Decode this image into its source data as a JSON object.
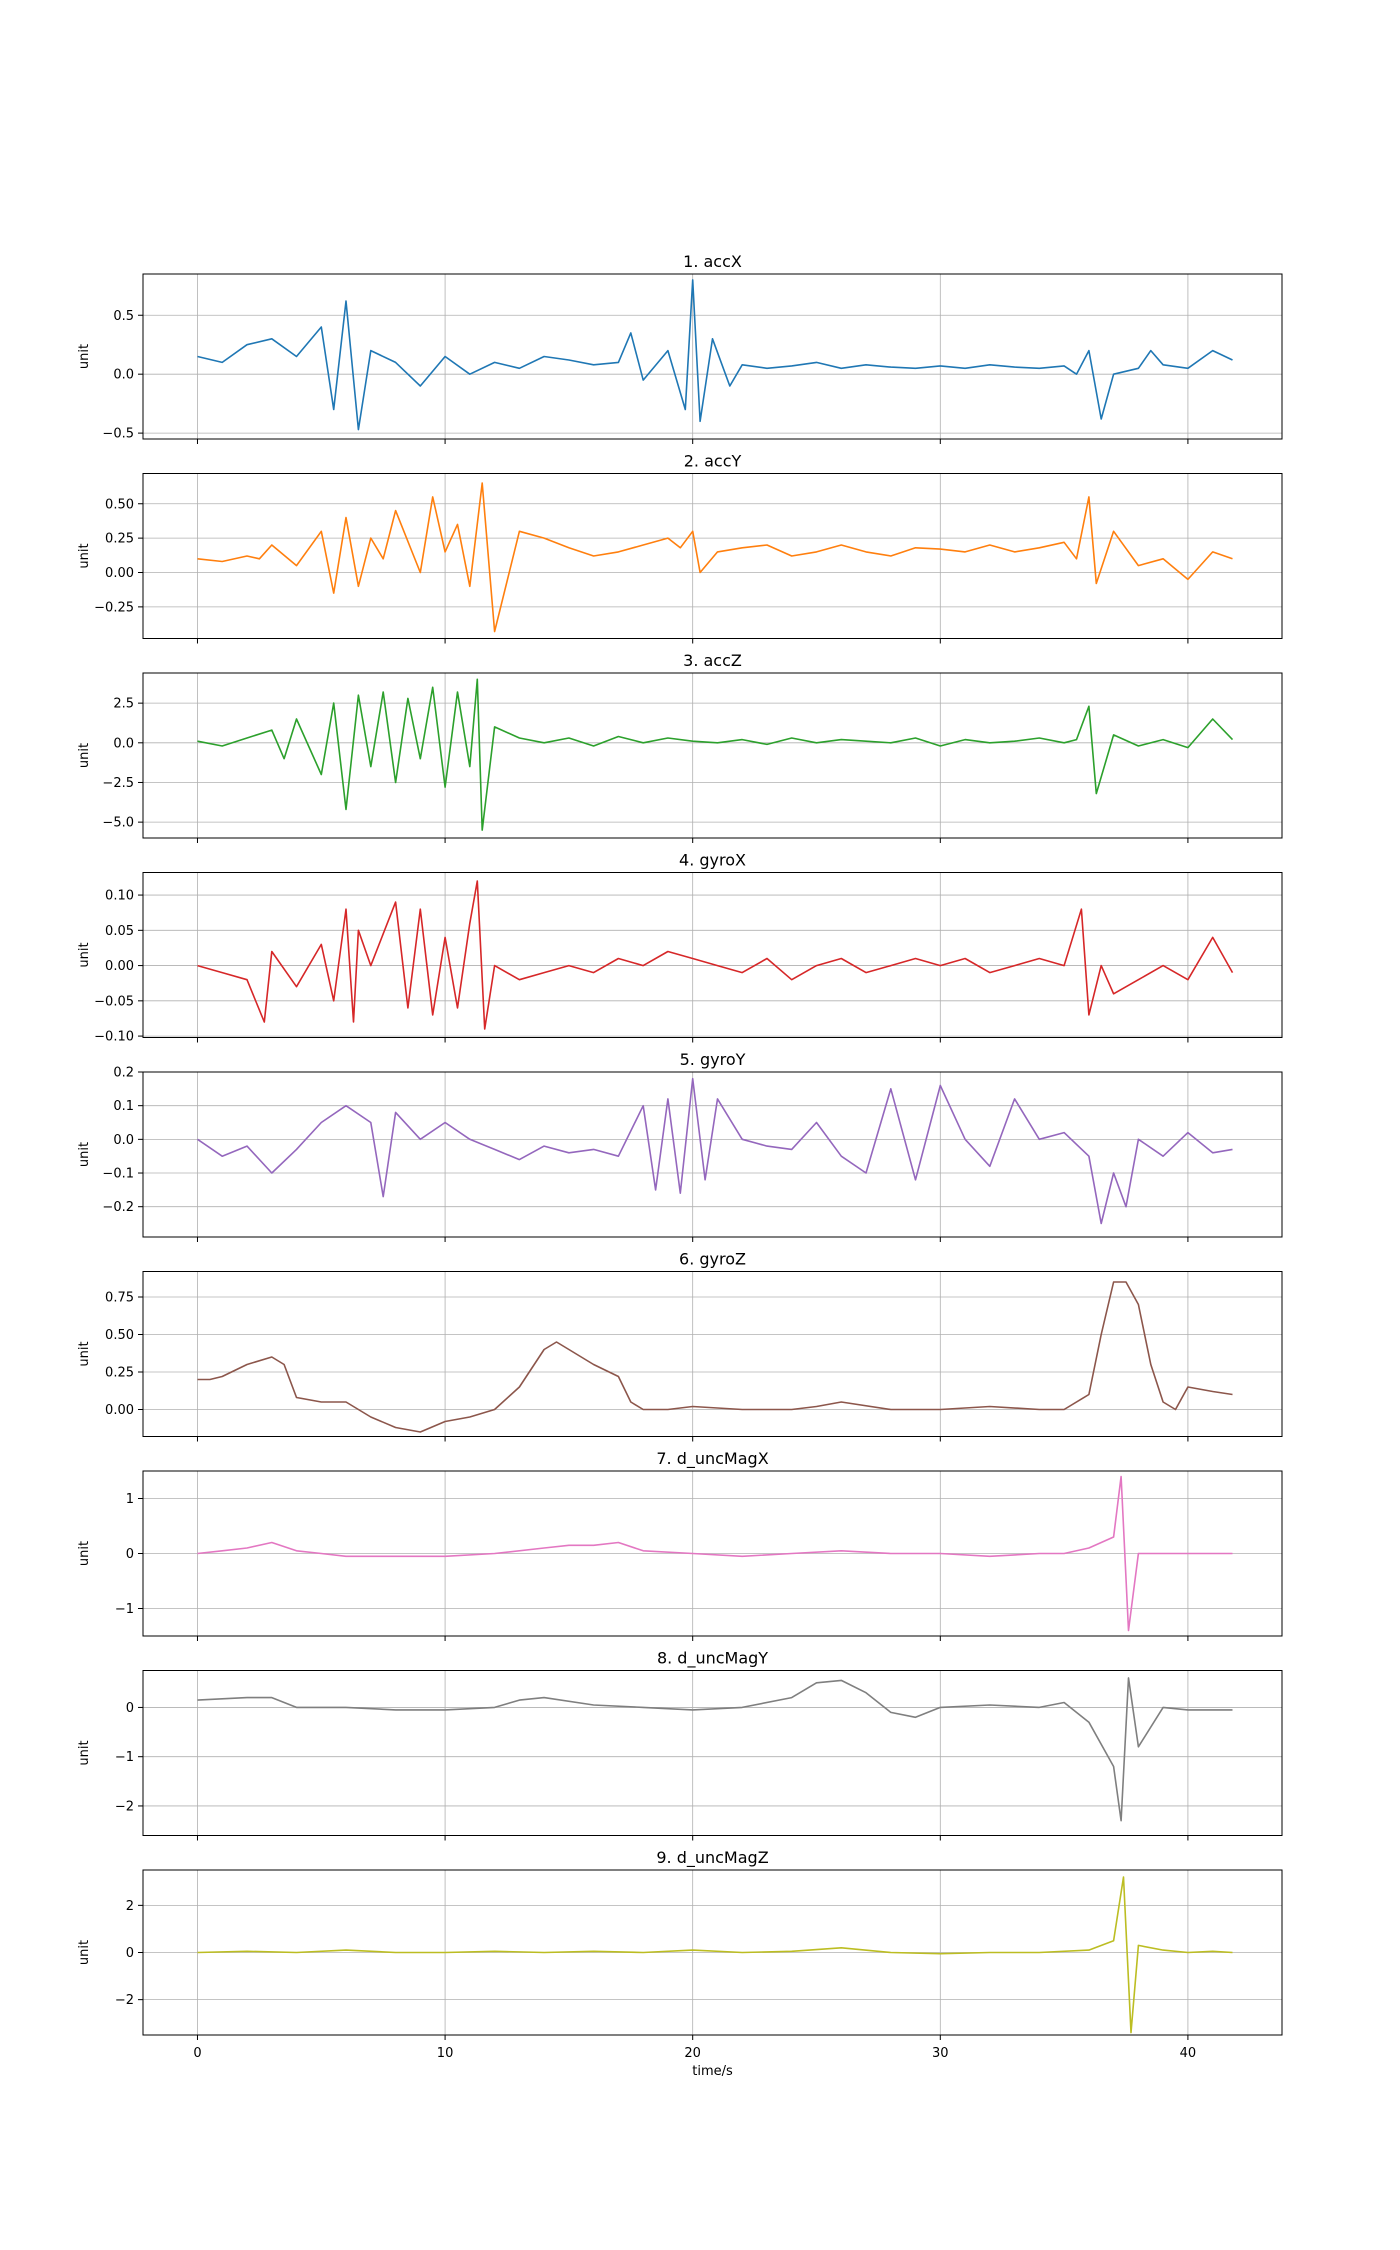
{
  "xlabel": "time/s",
  "x_ticks": [
    0,
    10,
    20,
    30,
    40
  ],
  "xlim": [
    -2.2,
    43.8
  ],
  "grid": true,
  "chart_data": [
    {
      "type": "line",
      "title": "1. accX",
      "ylabel": "unit",
      "color": "#1f77b4",
      "ylim": [
        -0.55,
        0.85
      ],
      "yticks": [
        0.5,
        0.0,
        -0.5
      ],
      "ytick_labels": [
        "0.5",
        "0.0",
        "−0.5"
      ],
      "x": [
        0,
        1,
        2,
        3,
        4,
        5,
        5.5,
        6,
        6.5,
        7,
        8,
        9,
        10,
        11,
        12,
        13,
        14,
        15,
        16,
        17,
        17.5,
        18,
        19,
        19.7,
        20,
        20.3,
        20.8,
        21.5,
        22,
        23,
        24,
        25,
        26,
        27,
        28,
        29,
        30,
        31,
        32,
        33,
        34,
        35,
        35.5,
        36,
        36.5,
        37,
        38,
        38.5,
        39,
        40,
        41,
        41.8
      ],
      "values": [
        0.15,
        0.1,
        0.25,
        0.3,
        0.15,
        0.4,
        -0.3,
        0.62,
        -0.47,
        0.2,
        0.1,
        -0.1,
        0.15,
        0.0,
        0.1,
        0.05,
        0.15,
        0.12,
        0.08,
        0.1,
        0.35,
        -0.05,
        0.2,
        -0.3,
        0.8,
        -0.4,
        0.3,
        -0.1,
        0.08,
        0.05,
        0.07,
        0.1,
        0.05,
        0.08,
        0.06,
        0.05,
        0.07,
        0.05,
        0.08,
        0.06,
        0.05,
        0.07,
        0.0,
        0.2,
        -0.38,
        0.0,
        0.05,
        0.2,
        0.08,
        0.05,
        0.2,
        0.12
      ]
    },
    {
      "type": "line",
      "title": "2. accY",
      "ylabel": "unit",
      "color": "#ff7f0e",
      "ylim": [
        -0.48,
        0.72
      ],
      "yticks": [
        0.5,
        0.25,
        0.0,
        -0.25
      ],
      "ytick_labels": [
        "0.50",
        "0.25",
        "0.00",
        "−0.25"
      ],
      "x": [
        0,
        1,
        2,
        2.5,
        3,
        4,
        5,
        5.5,
        6,
        6.5,
        7,
        7.5,
        8,
        9,
        9.5,
        10,
        10.5,
        11,
        11.5,
        12,
        13,
        14,
        15,
        16,
        17,
        18,
        19,
        19.5,
        20,
        20.3,
        21,
        22,
        23,
        24,
        25,
        26,
        27,
        28,
        29,
        30,
        31,
        32,
        33,
        34,
        35,
        35.5,
        36,
        36.3,
        37,
        38,
        39,
        40,
        41,
        41.8
      ],
      "values": [
        0.1,
        0.08,
        0.12,
        0.1,
        0.2,
        0.05,
        0.3,
        -0.15,
        0.4,
        -0.1,
        0.25,
        0.1,
        0.45,
        0.0,
        0.55,
        0.15,
        0.35,
        -0.1,
        0.65,
        -0.43,
        0.3,
        0.25,
        0.18,
        0.12,
        0.15,
        0.2,
        0.25,
        0.18,
        0.3,
        0.0,
        0.15,
        0.18,
        0.2,
        0.12,
        0.15,
        0.2,
        0.15,
        0.12,
        0.18,
        0.17,
        0.15,
        0.2,
        0.15,
        0.18,
        0.22,
        0.1,
        0.55,
        -0.08,
        0.3,
        0.05,
        0.1,
        -0.05,
        0.15,
        0.1
      ]
    },
    {
      "type": "line",
      "title": "3. accZ",
      "ylabel": "unit",
      "color": "#2ca02c",
      "ylim": [
        -6.0,
        4.4
      ],
      "yticks": [
        2.5,
        0.0,
        -2.5,
        -5.0
      ],
      "ytick_labels": [
        "2.5",
        "0.0",
        "−2.5",
        "−5.0"
      ],
      "x": [
        0,
        1,
        2,
        3,
        3.5,
        4,
        5,
        5.5,
        6,
        6.5,
        7,
        7.5,
        8,
        8.5,
        9,
        9.5,
        10,
        10.5,
        11,
        11.3,
        11.5,
        12,
        13,
        14,
        15,
        16,
        17,
        18,
        19,
        20,
        21,
        22,
        23,
        24,
        25,
        26,
        27,
        28,
        29,
        30,
        31,
        32,
        33,
        34,
        35,
        35.5,
        36,
        36.3,
        37,
        38,
        39,
        40,
        41,
        41.8
      ],
      "values": [
        0.1,
        -0.2,
        0.3,
        0.8,
        -1.0,
        1.5,
        -2.0,
        2.5,
        -4.2,
        3.0,
        -1.5,
        3.2,
        -2.5,
        2.8,
        -1.0,
        3.5,
        -2.8,
        3.2,
        -1.5,
        4.0,
        -5.5,
        1.0,
        0.3,
        0.0,
        0.3,
        -0.2,
        0.4,
        0.0,
        0.3,
        0.1,
        0.0,
        0.2,
        -0.1,
        0.3,
        0.0,
        0.2,
        0.1,
        0.0,
        0.3,
        -0.2,
        0.2,
        0.0,
        0.1,
        0.3,
        0.0,
        0.2,
        2.3,
        -3.2,
        0.5,
        -0.2,
        0.2,
        -0.3,
        1.5,
        0.2
      ]
    },
    {
      "type": "line",
      "title": "4. gyroX",
      "ylabel": "unit",
      "color": "#d62728",
      "ylim": [
        -0.102,
        0.132
      ],
      "yticks": [
        0.1,
        0.05,
        0.0,
        -0.05,
        -0.1
      ],
      "ytick_labels": [
        "0.10",
        "0.05",
        "0.00",
        "−0.05",
        "−0.10"
      ],
      "x": [
        0,
        1,
        2,
        2.7,
        3,
        4,
        5,
        5.5,
        6,
        6.3,
        6.5,
        7,
        8,
        8.5,
        9,
        9.5,
        10,
        10.5,
        11,
        11.3,
        11.6,
        12,
        13,
        14,
        15,
        16,
        17,
        18,
        19,
        20,
        21,
        22,
        23,
        24,
        25,
        26,
        27,
        28,
        29,
        30,
        31,
        32,
        33,
        34,
        35,
        35.7,
        36,
        36.5,
        37,
        38,
        39,
        40,
        41,
        41.8
      ],
      "values": [
        0.0,
        -0.01,
        -0.02,
        -0.08,
        0.02,
        -0.03,
        0.03,
        -0.05,
        0.08,
        -0.08,
        0.05,
        0.0,
        0.09,
        -0.06,
        0.08,
        -0.07,
        0.04,
        -0.06,
        0.06,
        0.12,
        -0.09,
        0.0,
        -0.02,
        -0.01,
        0.0,
        -0.01,
        0.01,
        0.0,
        0.02,
        0.01,
        0.0,
        -0.01,
        0.01,
        -0.02,
        0.0,
        0.01,
        -0.01,
        0.0,
        0.01,
        0.0,
        0.01,
        -0.01,
        0.0,
        0.01,
        0.0,
        0.08,
        -0.07,
        0.0,
        -0.04,
        -0.02,
        0.0,
        -0.02,
        0.04,
        -0.01
      ]
    },
    {
      "type": "line",
      "title": "5. gyroY",
      "ylabel": "unit",
      "color": "#9467bd",
      "ylim": [
        -0.29,
        0.2
      ],
      "yticks": [
        0.2,
        0.1,
        0.0,
        -0.1,
        -0.2
      ],
      "ytick_labels": [
        "0.2",
        "0.1",
        "0.0",
        "−0.1",
        "−0.2"
      ],
      "x": [
        0,
        1,
        2,
        3,
        4,
        5,
        6,
        7,
        7.5,
        8,
        9,
        10,
        11,
        12,
        13,
        14,
        15,
        16,
        17,
        18,
        18.5,
        19,
        19.5,
        20,
        20.5,
        21,
        22,
        23,
        24,
        25,
        26,
        27,
        28,
        29,
        30,
        31,
        32,
        33,
        34,
        35,
        36,
        36.5,
        37,
        37.5,
        38,
        39,
        40,
        41,
        41.8
      ],
      "values": [
        0.0,
        -0.05,
        -0.02,
        -0.1,
        -0.03,
        0.05,
        0.1,
        0.05,
        -0.17,
        0.08,
        0.0,
        0.05,
        0.0,
        -0.03,
        -0.06,
        -0.02,
        -0.04,
        -0.03,
        -0.05,
        0.1,
        -0.15,
        0.12,
        -0.16,
        0.18,
        -0.12,
        0.12,
        0.0,
        -0.02,
        -0.03,
        0.05,
        -0.05,
        -0.1,
        0.15,
        -0.12,
        0.16,
        0.0,
        -0.08,
        0.12,
        0.0,
        0.02,
        -0.05,
        -0.25,
        -0.1,
        -0.2,
        0.0,
        -0.05,
        0.02,
        -0.04,
        -0.03
      ]
    },
    {
      "type": "line",
      "title": "6. gyroZ",
      "ylabel": "unit",
      "color": "#8c564b",
      "ylim": [
        -0.18,
        0.92
      ],
      "yticks": [
        0.75,
        0.5,
        0.25,
        0.0
      ],
      "ytick_labels": [
        "0.75",
        "0.50",
        "0.25",
        "0.00"
      ],
      "x": [
        0,
        0.5,
        1,
        2,
        3,
        3.5,
        4,
        5,
        6,
        7,
        8,
        9,
        10,
        11,
        12,
        13,
        14,
        14.5,
        15,
        16,
        17,
        17.5,
        18,
        19,
        20,
        22,
        24,
        25,
        26,
        28,
        30,
        32,
        34,
        35,
        36,
        36.5,
        37,
        37.5,
        38,
        38.5,
        39,
        39.5,
        40,
        41,
        41.8
      ],
      "values": [
        0.2,
        0.2,
        0.22,
        0.3,
        0.35,
        0.3,
        0.08,
        0.05,
        0.05,
        -0.05,
        -0.12,
        -0.15,
        -0.08,
        -0.05,
        0.0,
        0.15,
        0.4,
        0.45,
        0.4,
        0.3,
        0.22,
        0.05,
        0.0,
        0.0,
        0.02,
        0.0,
        0.0,
        0.02,
        0.05,
        0.0,
        0.0,
        0.02,
        0.0,
        0.0,
        0.1,
        0.5,
        0.85,
        0.85,
        0.7,
        0.3,
        0.05,
        0.0,
        0.15,
        0.12,
        0.1
      ]
    },
    {
      "type": "line",
      "title": "7. d_uncMagX",
      "ylabel": "unit",
      "color": "#e377c2",
      "ylim": [
        -1.5,
        1.5
      ],
      "yticks": [
        1,
        0,
        -1
      ],
      "ytick_labels": [
        "1",
        "0",
        "−1"
      ],
      "x": [
        0,
        1,
        2,
        3,
        4,
        5,
        6,
        8,
        10,
        12,
        14,
        15,
        16,
        17,
        18,
        20,
        22,
        24,
        26,
        28,
        30,
        32,
        34,
        35,
        36,
        37,
        37.3,
        37.6,
        38,
        39,
        40,
        41,
        41.8
      ],
      "values": [
        0.0,
        0.05,
        0.1,
        0.2,
        0.05,
        0.0,
        -0.05,
        -0.05,
        -0.05,
        0.0,
        0.1,
        0.15,
        0.15,
        0.2,
        0.05,
        0.0,
        -0.05,
        0.0,
        0.05,
        0.0,
        0.0,
        -0.05,
        0.0,
        0.0,
        0.1,
        0.3,
        1.4,
        -1.4,
        0.0,
        0.0,
        0.0,
        0.0,
        0.0
      ]
    },
    {
      "type": "line",
      "title": "8. d_uncMagY",
      "ylabel": "unit",
      "color": "#7f7f7f",
      "ylim": [
        -2.6,
        0.75
      ],
      "yticks": [
        0,
        -1,
        -2
      ],
      "ytick_labels": [
        "0",
        "−1",
        "−2"
      ],
      "x": [
        0,
        2,
        3,
        4,
        6,
        8,
        10,
        12,
        13,
        14,
        16,
        18,
        20,
        22,
        24,
        25,
        26,
        27,
        28,
        29,
        30,
        32,
        34,
        35,
        36,
        37,
        37.3,
        37.6,
        38,
        39,
        40,
        41,
        41.8
      ],
      "values": [
        0.15,
        0.2,
        0.2,
        0.0,
        0.0,
        -0.05,
        -0.05,
        0.0,
        0.15,
        0.2,
        0.05,
        0.0,
        -0.05,
        0.0,
        0.2,
        0.5,
        0.55,
        0.3,
        -0.1,
        -0.2,
        0.0,
        0.05,
        0.0,
        0.1,
        -0.3,
        -1.2,
        -2.3,
        0.6,
        -0.8,
        0.0,
        -0.05,
        -0.05,
        -0.05
      ]
    },
    {
      "type": "line",
      "title": "9. d_uncMagZ",
      "ylabel": "unit",
      "color": "#bcbd22",
      "ylim": [
        -3.5,
        3.5
      ],
      "yticks": [
        2,
        0,
        -2
      ],
      "ytick_labels": [
        "2",
        "0",
        "−2"
      ],
      "x": [
        0,
        2,
        4,
        6,
        8,
        10,
        12,
        14,
        16,
        18,
        20,
        22,
        24,
        26,
        28,
        30,
        32,
        34,
        36,
        37,
        37.4,
        37.7,
        38,
        39,
        40,
        41,
        41.8
      ],
      "values": [
        0.0,
        0.05,
        0.0,
        0.1,
        0.0,
        0.0,
        0.05,
        0.0,
        0.05,
        0.0,
        0.1,
        0.0,
        0.05,
        0.2,
        0.0,
        -0.05,
        0.0,
        0.0,
        0.1,
        0.5,
        3.2,
        -3.4,
        0.3,
        0.1,
        0.0,
        0.05,
        0.0
      ]
    }
  ]
}
